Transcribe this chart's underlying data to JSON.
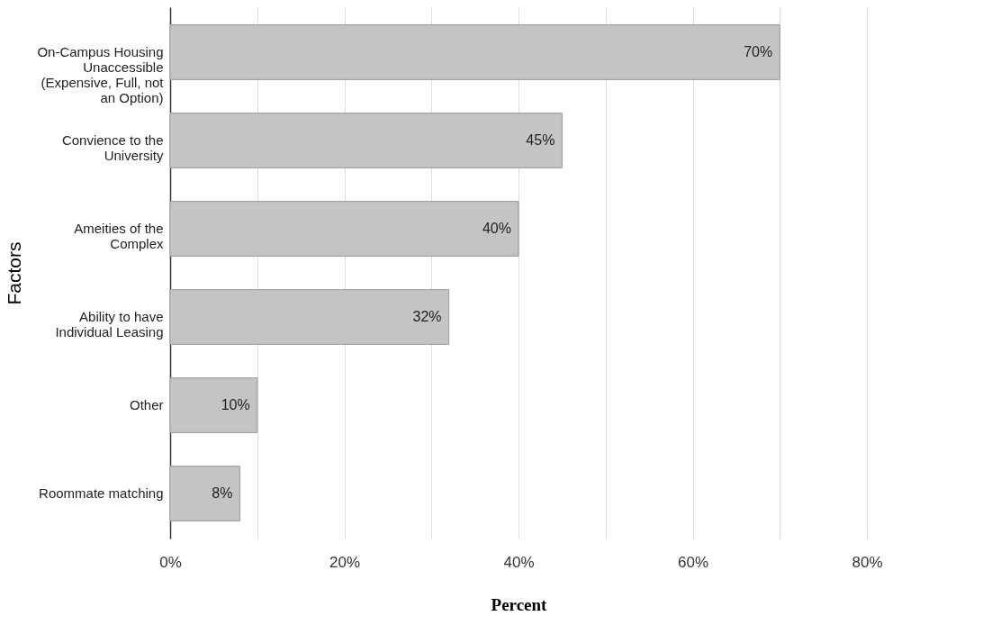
{
  "chart_data": {
    "type": "bar",
    "orientation": "horizontal",
    "categories": [
      "On-Campus Housing\nUnaccessible\n(Expensive, Full, not\nan Option)",
      "Convience to the\nUniversity",
      "Ameities of the\nComplex",
      "Ability to have\nIndividual Leasing",
      "Other",
      "Roommate matching"
    ],
    "values": [
      70,
      45,
      40,
      32,
      10,
      8
    ],
    "value_labels": [
      "70%",
      "45%",
      "40%",
      "32%",
      "10%",
      "8%"
    ],
    "color": "#c4c4c4",
    "xlabel": "Percent",
    "ylabel": "Factors",
    "xlim": [
      0,
      80
    ],
    "xticks": [
      {
        "value": 0,
        "label": "0%"
      },
      {
        "value": 10,
        "label": null
      },
      {
        "value": 20,
        "label": "20%"
      },
      {
        "value": 30,
        "label": null
      },
      {
        "value": 40,
        "label": "40%"
      },
      {
        "value": 50,
        "label": null
      },
      {
        "value": 60,
        "label": "60%"
      },
      {
        "value": 70,
        "label": null
      },
      {
        "value": 80,
        "label": "80%"
      }
    ],
    "grid": "x"
  }
}
